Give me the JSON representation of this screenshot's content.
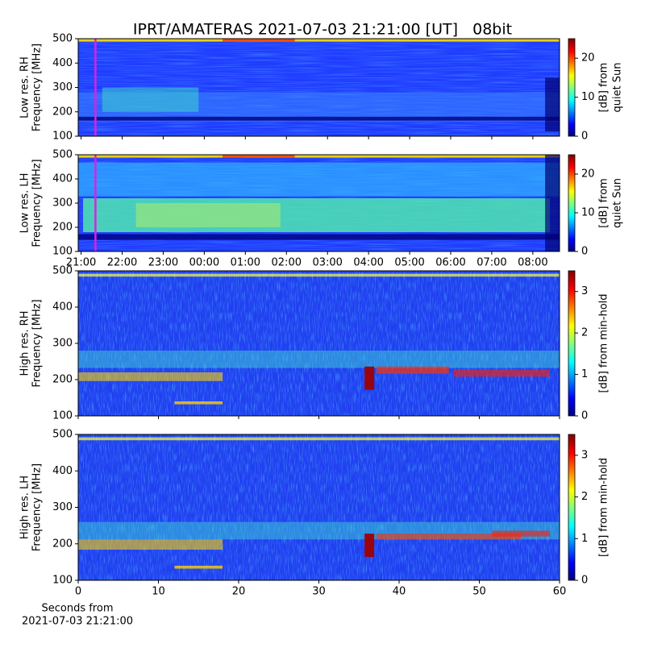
{
  "chart_data": [
    {
      "type": "spectrogram",
      "title": "IPRT/AMATERAS 2021-07-03 21:21:00 [UT]   08bit",
      "ylabel": [
        "Low res. RH",
        "Frequency [MHz]"
      ],
      "ylim": [
        100,
        500
      ],
      "yticks": [
        100,
        200,
        300,
        400,
        500
      ],
      "xlim": [
        20.93,
        32.65
      ],
      "xticks": [
        {
          "value": 21,
          "label": "21:00"
        },
        {
          "value": 22,
          "label": "22:00"
        },
        {
          "value": 23,
          "label": "23:00"
        },
        {
          "value": 24,
          "label": "00:00"
        },
        {
          "value": 25,
          "label": "01:00"
        },
        {
          "value": 26,
          "label": "02:00"
        },
        {
          "value": 27,
          "label": "03:00"
        },
        {
          "value": 28,
          "label": "04:00"
        },
        {
          "value": 29,
          "label": "05:00"
        },
        {
          "value": 30,
          "label": "06:00"
        },
        {
          "value": 31,
          "label": "07:00"
        },
        {
          "value": 32,
          "label": "08:00"
        }
      ],
      "show_xtick_labels": false,
      "marker_x": 21.35,
      "marker_color": "#e020e0",
      "colorbar": {
        "label": [
          "[dB] from",
          "quiet Sun"
        ],
        "lim": [
          0,
          25
        ],
        "ticks": [
          0,
          10,
          20
        ]
      }
    },
    {
      "type": "spectrogram",
      "ylabel": [
        "Low res. LH",
        "Frequency [MHz]"
      ],
      "ylim": [
        100,
        500
      ],
      "yticks": [
        100,
        200,
        300,
        400,
        500
      ],
      "xlim": [
        20.93,
        32.65
      ],
      "xticks": [
        {
          "value": 21,
          "label": "21:00"
        },
        {
          "value": 22,
          "label": "22:00"
        },
        {
          "value": 23,
          "label": "23:00"
        },
        {
          "value": 24,
          "label": "00:00"
        },
        {
          "value": 25,
          "label": "01:00"
        },
        {
          "value": 26,
          "label": "02:00"
        },
        {
          "value": 27,
          "label": "03:00"
        },
        {
          "value": 28,
          "label": "04:00"
        },
        {
          "value": 29,
          "label": "05:00"
        },
        {
          "value": 30,
          "label": "06:00"
        },
        {
          "value": 31,
          "label": "07:00"
        },
        {
          "value": 32,
          "label": "08:00"
        }
      ],
      "show_xtick_labels": true,
      "marker_x": 21.35,
      "marker_color": "#e020e0",
      "colorbar": {
        "label": [
          "[dB] from",
          "quiet Sun"
        ],
        "lim": [
          0,
          25
        ],
        "ticks": [
          0,
          10,
          20
        ]
      }
    },
    {
      "type": "spectrogram",
      "ylabel": [
        "High res. RH",
        "Frequency [MHz]"
      ],
      "ylim": [
        100,
        500
      ],
      "yticks": [
        100,
        200,
        300,
        400,
        500
      ],
      "xlim": [
        0,
        60
      ],
      "xticks": [
        0,
        10,
        20,
        30,
        40,
        50,
        60
      ],
      "show_xtick_labels": false,
      "colorbar": {
        "label": [
          "[dB] from min-hold"
        ],
        "lim": [
          0,
          3.5
        ],
        "ticks": [
          0,
          1,
          2,
          3
        ]
      }
    },
    {
      "type": "spectrogram",
      "ylabel": [
        "High res. LH",
        "Frequency [MHz]"
      ],
      "ylim": [
        100,
        500
      ],
      "yticks": [
        100,
        200,
        300,
        400,
        500
      ],
      "xlim": [
        0,
        60
      ],
      "xticks": [
        0,
        10,
        20,
        30,
        40,
        50,
        60
      ],
      "show_xtick_labels": true,
      "xlabel": [
        "Seconds from",
        "2021-07-03 21:21:00"
      ],
      "colorbar": {
        "label": [
          "[dB] from min-hold"
        ],
        "lim": [
          0,
          3.5
        ],
        "ticks": [
          0,
          1,
          2,
          3
        ]
      }
    }
  ]
}
